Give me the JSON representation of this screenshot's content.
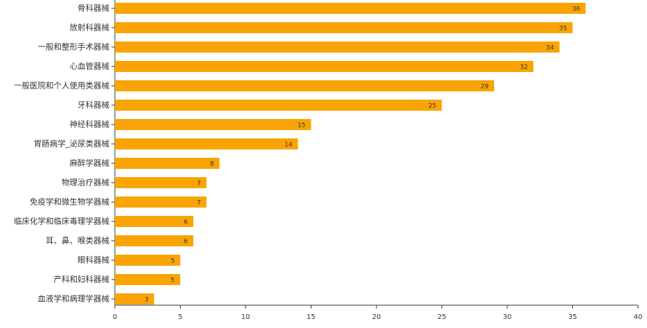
{
  "chart_data": {
    "type": "bar",
    "orientation": "horizontal",
    "categories": [
      "骨科器械",
      "放射科器械",
      "一般和整形手术器械",
      "心血管器械",
      "一般医院和个人使用类器械",
      "牙科器械",
      "神经科器械",
      "胃肠病学_泌尿类器械",
      "麻醉学器械",
      "物理治疗器械",
      "免疫学和微生物学器械",
      "临床化学和临床毒理学器械",
      "耳、鼻、喉类器械",
      "眼科器械",
      "产科和妇科器械",
      "血液学和病理学器械"
    ],
    "values": [
      36,
      35,
      34,
      32,
      29,
      25,
      15,
      14,
      8,
      7,
      7,
      6,
      6,
      5,
      5,
      3
    ],
    "color": "#f9a404",
    "xlim": [
      0,
      40
    ],
    "xticks": [
      0,
      5,
      10,
      15,
      20,
      25,
      30,
      35,
      40
    ]
  }
}
